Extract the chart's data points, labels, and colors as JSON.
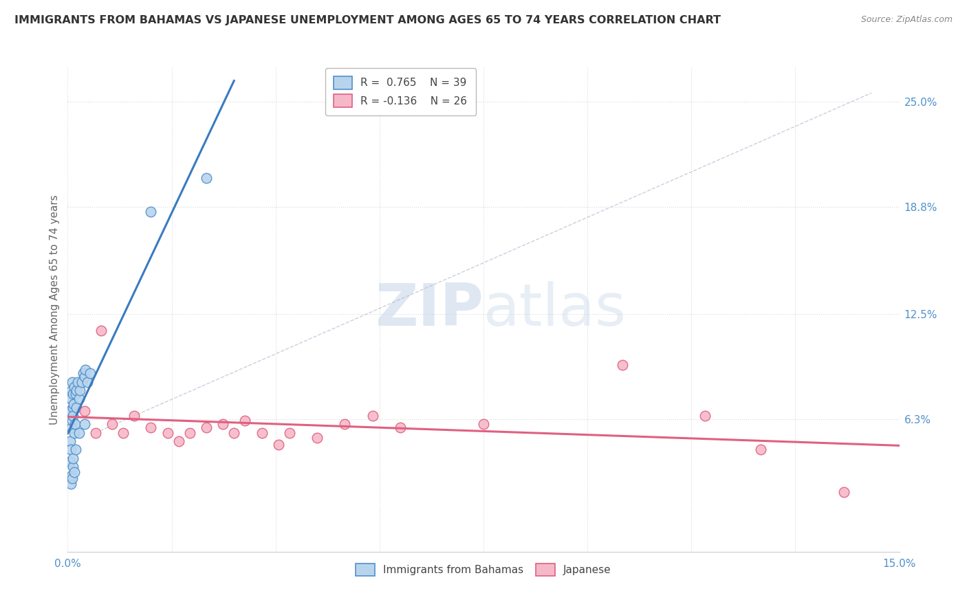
{
  "title": "IMMIGRANTS FROM BAHAMAS VS JAPANESE UNEMPLOYMENT AMONG AGES 65 TO 74 YEARS CORRELATION CHART",
  "source": "Source: ZipAtlas.com",
  "ylabel": "Unemployment Among Ages 65 to 74 years",
  "xlim": [
    0.0,
    15.0
  ],
  "ylim": [
    -1.5,
    27.0
  ],
  "watermark_zip": "ZIP",
  "watermark_atlas": "atlas",
  "legend_blue_r": "R =  0.765",
  "legend_blue_n": "N = 39",
  "legend_pink_r": "R = -0.136",
  "legend_pink_n": "N = 26",
  "blue_color": "#b8d4ed",
  "pink_color": "#f5b8c8",
  "blue_edge_color": "#5090cc",
  "pink_edge_color": "#e06080",
  "blue_line_color": "#3a7bbf",
  "pink_line_color": "#e06080",
  "blue_scatter": [
    [
      0.05,
      5.0
    ],
    [
      0.06,
      4.5
    ],
    [
      0.07,
      5.8
    ],
    [
      0.08,
      6.2
    ],
    [
      0.05,
      6.8
    ],
    [
      0.09,
      7.0
    ],
    [
      0.06,
      7.5
    ],
    [
      0.07,
      8.0
    ],
    [
      0.08,
      8.5
    ],
    [
      0.1,
      7.8
    ],
    [
      0.12,
      8.2
    ],
    [
      0.1,
      6.5
    ],
    [
      0.11,
      7.2
    ],
    [
      0.12,
      5.5
    ],
    [
      0.13,
      6.0
    ],
    [
      0.15,
      7.0
    ],
    [
      0.14,
      7.8
    ],
    [
      0.16,
      8.0
    ],
    [
      0.18,
      8.5
    ],
    [
      0.2,
      7.5
    ],
    [
      0.22,
      8.0
    ],
    [
      0.25,
      8.5
    ],
    [
      0.28,
      9.0
    ],
    [
      0.3,
      8.8
    ],
    [
      0.32,
      9.2
    ],
    [
      0.35,
      8.5
    ],
    [
      0.4,
      9.0
    ],
    [
      0.05,
      3.8
    ],
    [
      0.06,
      2.5
    ],
    [
      0.07,
      3.0
    ],
    [
      0.08,
      2.8
    ],
    [
      0.09,
      3.5
    ],
    [
      0.1,
      4.0
    ],
    [
      0.12,
      3.2
    ],
    [
      0.14,
      4.5
    ],
    [
      0.2,
      5.5
    ],
    [
      0.3,
      6.0
    ],
    [
      1.5,
      18.5
    ],
    [
      2.5,
      20.5
    ]
  ],
  "pink_scatter": [
    [
      0.3,
      6.8
    ],
    [
      0.5,
      5.5
    ],
    [
      0.8,
      6.0
    ],
    [
      1.0,
      5.5
    ],
    [
      1.2,
      6.5
    ],
    [
      1.5,
      5.8
    ],
    [
      1.8,
      5.5
    ],
    [
      2.0,
      5.0
    ],
    [
      2.2,
      5.5
    ],
    [
      2.5,
      5.8
    ],
    [
      2.8,
      6.0
    ],
    [
      3.0,
      5.5
    ],
    [
      3.2,
      6.2
    ],
    [
      3.5,
      5.5
    ],
    [
      3.8,
      4.8
    ],
    [
      4.0,
      5.5
    ],
    [
      4.5,
      5.2
    ],
    [
      5.0,
      6.0
    ],
    [
      5.5,
      6.5
    ],
    [
      6.0,
      5.8
    ],
    [
      7.5,
      6.0
    ],
    [
      10.0,
      9.5
    ],
    [
      11.5,
      6.5
    ],
    [
      12.5,
      4.5
    ],
    [
      14.0,
      2.0
    ],
    [
      0.6,
      11.5
    ]
  ],
  "background_color": "#ffffff",
  "grid_color": "#d8d8d8",
  "ytick_right_vals": [
    6.3,
    12.5,
    18.8,
    25.0
  ],
  "ytick_right_labels": [
    "6.3%",
    "12.5%",
    "18.8%",
    "25.0%"
  ]
}
